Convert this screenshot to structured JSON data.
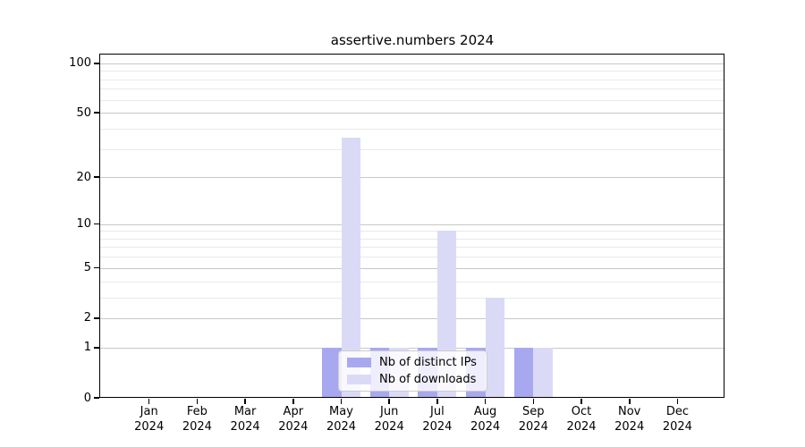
{
  "chart_data": {
    "type": "bar",
    "title": "assertive.numbers 2024",
    "xlabel": "",
    "ylabel": "",
    "categories": [
      "Jan",
      "Feb",
      "Mar",
      "Apr",
      "May",
      "Jun",
      "Jul",
      "Aug",
      "Sep",
      "Oct",
      "Nov",
      "Dec"
    ],
    "x_tick_year": "2024",
    "series": [
      {
        "name": "Nb of distinct IPs",
        "color": "#a8a8f0",
        "values": [
          0,
          0,
          0,
          0,
          1,
          1,
          1,
          1,
          1,
          0,
          0,
          0
        ]
      },
      {
        "name": "Nb of downloads",
        "color": "#dadaf7",
        "values": [
          0,
          0,
          0,
          0,
          35,
          1,
          9,
          3,
          1,
          0,
          0,
          0
        ]
      }
    ],
    "yscale": "log1p",
    "ylim": [
      0,
      113
    ],
    "y_major_ticks": [
      0,
      1,
      2,
      5,
      10,
      20,
      50,
      100
    ],
    "y_minor_ticks": [
      3,
      4,
      6,
      7,
      8,
      9,
      30,
      40,
      60,
      70,
      80,
      90
    ],
    "grid": {
      "on": true,
      "major_color": "#c8c8c8",
      "minor_color": "#e9e9e9"
    },
    "legend": {
      "position": "inside-bottom-center",
      "entries": [
        "Nb of distinct IPs",
        "Nb of downloads"
      ]
    }
  }
}
